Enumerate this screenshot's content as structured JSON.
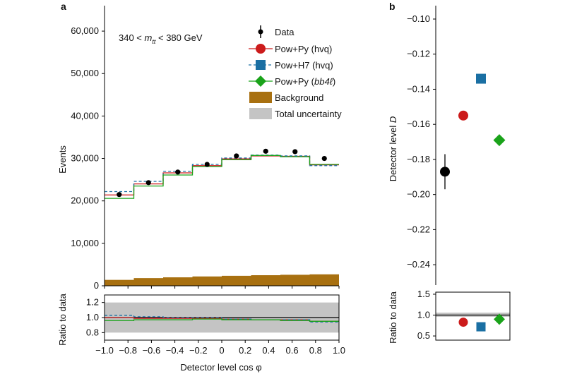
{
  "colors": {
    "pow_py": "#cc1b1b",
    "pow_h7": "#1a6fa3",
    "bb4l": "#1aa31a",
    "background": "#a87010",
    "uncertainty": "#c4c4c4",
    "data": "#000000"
  },
  "chart_data": [
    {
      "panel_label": "a",
      "type": "line",
      "annotation": "340 < m_tt < 380 GeV",
      "annotation_parts": {
        "low": "340 < ",
        "var": "m",
        "sub": "tt",
        "high": " < 380 GeV"
      },
      "xlabel": "Detector level cos φ",
      "ylabel": "Events",
      "ylim": [
        0,
        66000
      ],
      "y_ticks": [
        0,
        10000,
        20000,
        30000,
        40000,
        50000,
        60000
      ],
      "y_tick_labels": [
        "0",
        "10,000",
        "20,000",
        "30,000",
        "40,000",
        "50,000",
        "60,000"
      ],
      "xlim": [
        -1.0,
        1.0
      ],
      "x_ticks": [
        -1.0,
        -0.8,
        -0.6,
        -0.4,
        -0.2,
        0,
        0.2,
        0.4,
        0.6,
        0.8,
        1.0
      ],
      "x_tick_labels": [
        "−1.0",
        "−0.8",
        "−0.6",
        "−0.4",
        "−0.2",
        "0",
        "0.2",
        "0.4",
        "0.6",
        "0.8",
        "1.0"
      ],
      "bin_edges": [
        -1.0,
        -0.75,
        -0.5,
        -0.25,
        0,
        0.25,
        0.5,
        0.75,
        1.0
      ],
      "bin_centers": [
        -0.875,
        -0.625,
        -0.375,
        -0.125,
        0.125,
        0.375,
        0.625,
        0.875
      ],
      "data": [
        21500,
        24300,
        26800,
        28600,
        30600,
        31700,
        31600,
        30000
      ],
      "series": [
        {
          "name": "Pow+Py (hvq)",
          "style": "solid",
          "values": [
            21400,
            24000,
            26600,
            28300,
            29900,
            30600,
            30500,
            28500
          ]
        },
        {
          "name": "Pow+H7 (hvq)",
          "style": "dashed",
          "values": [
            22200,
            24600,
            27000,
            28600,
            30100,
            30800,
            30600,
            28300
          ]
        },
        {
          "name": "Pow+Py (bb4ℓ)",
          "style": "solid",
          "values": [
            20600,
            23500,
            26100,
            28100,
            29700,
            30700,
            30400,
            28600
          ]
        }
      ],
      "background": [
        1400,
        1800,
        2000,
        2200,
        2350,
        2500,
        2600,
        2700
      ],
      "legend": {
        "placement": "top-right",
        "entries": [
          {
            "label": "Data",
            "marker": "point-errorbar"
          },
          {
            "label": "Pow+Py (hvq)",
            "marker": "circle"
          },
          {
            "label": "Pow+H7 (hvq)",
            "marker": "square"
          },
          {
            "label_main": "Pow+Py (",
            "label_italic": "bb4ℓ",
            "label_end": ")",
            "marker": "diamond"
          },
          {
            "label": "Background",
            "marker": "box"
          },
          {
            "label": "Total uncertainty",
            "marker": "box"
          }
        ]
      },
      "ratio": {
        "ylabel": "Ratio to data",
        "ylim": [
          0.7,
          1.3
        ],
        "y_ticks": [
          0.8,
          1.0,
          1.2
        ],
        "y_tick_labels": [
          "0.8",
          "1.0",
          "1.2"
        ],
        "uncertainty_band": [
          0.8,
          1.2
        ],
        "pow_py": [
          1.0,
          0.99,
          0.99,
          0.99,
          0.98,
          0.97,
          0.97,
          0.95
        ],
        "pow_h7": [
          1.03,
          1.01,
          1.0,
          1.0,
          0.98,
          0.97,
          0.97,
          0.94
        ],
        "bb4l": [
          0.96,
          0.97,
          0.97,
          0.98,
          0.97,
          0.97,
          0.96,
          0.95
        ]
      }
    },
    {
      "panel_label": "b",
      "type": "scatter",
      "ylabel": "Detector level D",
      "ylabel_main": "Detector level ",
      "ylabel_var": "D",
      "ylim": [
        -0.25,
        -0.1
      ],
      "y_ticks": [
        -0.24,
        -0.22,
        -0.2,
        -0.18,
        -0.16,
        -0.14,
        -0.12,
        -0.1
      ],
      "y_tick_labels": [
        "−0.24",
        "−0.22",
        "−0.20",
        "−0.18",
        "−0.16",
        "−0.14",
        "−0.12",
        "−0.10"
      ],
      "points": [
        {
          "name": "Data",
          "value": -0.187,
          "error": 0.01,
          "marker": "circle"
        },
        {
          "name": "Pow+Py (hvq)",
          "value": -0.155,
          "marker": "circle"
        },
        {
          "name": "Pow+H7 (hvq)",
          "value": -0.134,
          "marker": "square"
        },
        {
          "name": "Pow+Py (bb4ℓ)",
          "value": -0.169,
          "marker": "diamond"
        }
      ],
      "ratio": {
        "ylabel": "Ratio to data",
        "ylim": [
          0.4,
          1.55
        ],
        "y_ticks": [
          0.5,
          1.0,
          1.5
        ],
        "y_tick_labels": [
          "0.5",
          "1.0",
          "1.5"
        ],
        "uncertainty_band": [
          0.96,
          1.06
        ],
        "values": [
          0.83,
          0.72,
          0.9
        ]
      }
    }
  ]
}
